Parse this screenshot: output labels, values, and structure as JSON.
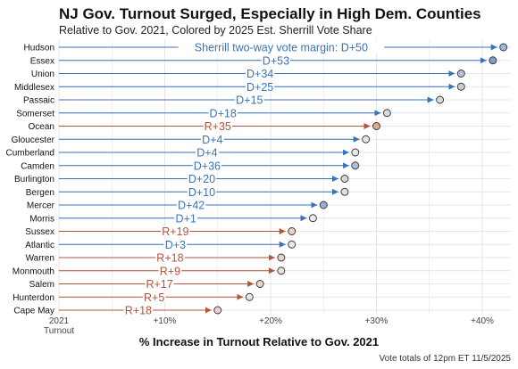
{
  "title": "NJ Gov. Turnout Surged, Especially in High Dem. Counties",
  "subtitle": "Relative to Gov. 2021, Colored by 2025 Est. Sherrill Vote Share",
  "note": "Vote totals of 12pm ET 11/5/2025",
  "colors": {
    "dem": "#3a73b8",
    "rep": "#b5533c",
    "dem_fill": "#9fb6df",
    "rep_fill": "#e0b8a8",
    "grid": "#e6e6e6",
    "point_stroke": "#333333"
  },
  "chart_data": {
    "type": "arrow-dot",
    "xlabel": "% Increase in Turnout Relative to Gov. 2021",
    "xlim": [
      0,
      43
    ],
    "ticks": [
      {
        "value": 0,
        "label": "2021",
        "sublabel": "Turnout"
      },
      {
        "value": 10,
        "label": "+10%"
      },
      {
        "value": 20,
        "label": "+20%"
      },
      {
        "value": 30,
        "label": "+30%"
      },
      {
        "value": 40,
        "label": "+40%"
      }
    ],
    "grid": true,
    "annotation": "Sherrill two-way vote margin:",
    "rows": [
      {
        "county": "Hudson",
        "value": 42,
        "margin": "D+50",
        "party": "dem",
        "fill": "#9fb6df"
      },
      {
        "county": "Essex",
        "value": 41,
        "margin": "D+53",
        "party": "dem",
        "fill": "#7e9dd2"
      },
      {
        "county": "Union",
        "value": 38,
        "margin": "D+34",
        "party": "dem",
        "fill": "#b5c4de"
      },
      {
        "county": "Middlesex",
        "value": 38,
        "margin": "D+25",
        "party": "dem",
        "fill": "#c4cfe0"
      },
      {
        "county": "Passaic",
        "value": 36,
        "margin": "D+15",
        "party": "dem",
        "fill": "#d6dbe3"
      },
      {
        "county": "Somerset",
        "value": 31,
        "margin": "D+18",
        "party": "dem",
        "fill": "#d3d9e2"
      },
      {
        "county": "Ocean",
        "value": 30,
        "margin": "R+35",
        "party": "rep",
        "fill": "#e0a994"
      },
      {
        "county": "Gloucester",
        "value": 29,
        "margin": "D+4",
        "party": "dem",
        "fill": "#e6e6e6"
      },
      {
        "county": "Cumberland",
        "value": 28,
        "margin": "D+4",
        "party": "dem",
        "fill": "#e6e6e6"
      },
      {
        "county": "Camden",
        "value": 28,
        "margin": "D+36",
        "party": "dem",
        "fill": "#aebfdd"
      },
      {
        "county": "Burlington",
        "value": 27,
        "margin": "D+20",
        "party": "dem",
        "fill": "#d0d7e2"
      },
      {
        "county": "Bergen",
        "value": 27,
        "margin": "D+10",
        "party": "dem",
        "fill": "#dcdfe4"
      },
      {
        "county": "Mercer",
        "value": 25,
        "margin": "D+42",
        "party": "dem",
        "fill": "#97afda"
      },
      {
        "county": "Morris",
        "value": 24,
        "margin": "D+1",
        "party": "dem",
        "fill": "#ebebeb"
      },
      {
        "county": "Sussex",
        "value": 22,
        "margin": "R+19",
        "party": "rep",
        "fill": "#e8d2c9"
      },
      {
        "county": "Atlantic",
        "value": 22,
        "margin": "D+3",
        "party": "dem",
        "fill": "#e8e8e8"
      },
      {
        "county": "Warren",
        "value": 21,
        "margin": "R+18",
        "party": "rep",
        "fill": "#e8d3ca"
      },
      {
        "county": "Monmouth",
        "value": 21,
        "margin": "R+9",
        "party": "rep",
        "fill": "#ebe0db"
      },
      {
        "county": "Salem",
        "value": 19,
        "margin": "R+17",
        "party": "rep",
        "fill": "#e9d4cb"
      },
      {
        "county": "Hunterdon",
        "value": 18,
        "margin": "R+5",
        "party": "rep",
        "fill": "#ece4e0"
      },
      {
        "county": "Cape May",
        "value": 15,
        "margin": "R+18",
        "party": "rep",
        "fill": "#e8d3ca"
      }
    ]
  }
}
